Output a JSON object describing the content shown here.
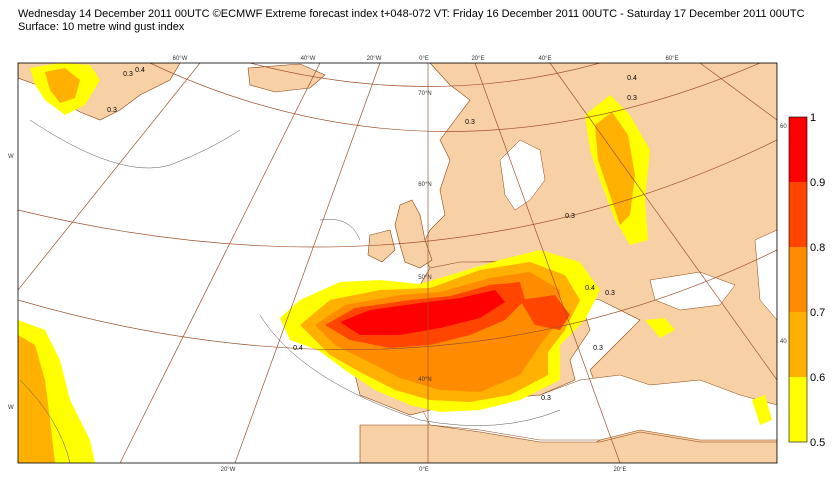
{
  "header": {
    "line1": "Wednesday 14 December 2011 00UTC ©ECMWF Extreme forecast index t+048-072 VT: Friday 16 December 2011 00UTC - Saturday 17 December 2011 00UTC",
    "line2": "Surface: 10 metre wind gust index"
  },
  "graticule_labels": {
    "top": [
      "60°W",
      "40°W",
      "20°W",
      "0°E",
      "20°E",
      "40°E",
      "60°E"
    ],
    "bottom": [
      "20°W",
      "0°E",
      "20°E"
    ],
    "lat": [
      "70°N",
      "60°N",
      "50°N",
      "40°N"
    ],
    "right": [
      "60",
      "40"
    ],
    "left": [
      "W",
      "W"
    ]
  },
  "contour_labels": [
    "0.3",
    "0.4",
    "0.3",
    "0.3",
    "0.4",
    "0.3",
    "0.3",
    "0.4",
    "0.3",
    "0.3",
    "0.4",
    "0.3"
  ],
  "colors": {
    "land": "#f8d0a6",
    "sea": "#ffffff",
    "border": "#8b4513",
    "graticule": "#a0522d"
  },
  "colorbar": {
    "ticks": [
      "1",
      "0.9",
      "0.8",
      "0.7",
      "0.6",
      "0.5"
    ],
    "bands": [
      {
        "from": 0.9,
        "to": 1.0,
        "color": "#ff0000"
      },
      {
        "from": 0.8,
        "to": 0.9,
        "color": "#ff4500"
      },
      {
        "from": 0.7,
        "to": 0.8,
        "color": "#ff8c00"
      },
      {
        "from": 0.6,
        "to": 0.7,
        "color": "#ffb000"
      },
      {
        "from": 0.5,
        "to": 0.6,
        "color": "#ffff00"
      }
    ]
  }
}
